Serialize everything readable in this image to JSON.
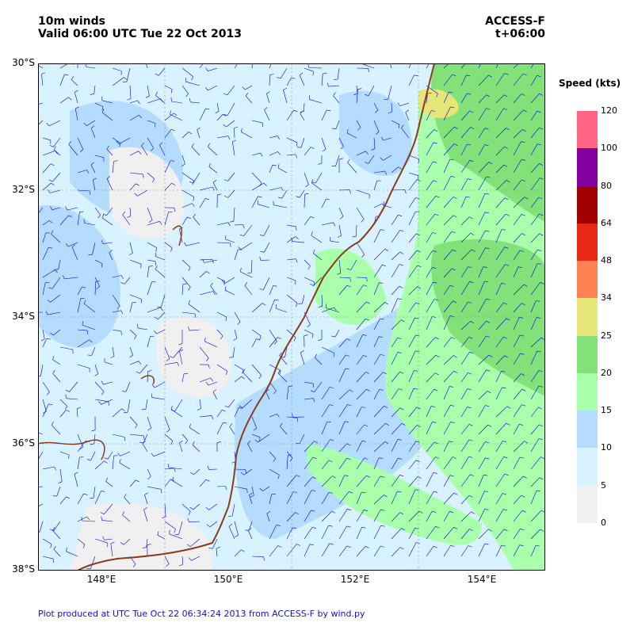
{
  "title": {
    "left_line1": "10m winds",
    "left_line2": "Valid 06:00 UTC Tue 22 Oct 2013",
    "right_line1": "ACCESS-F",
    "right_line2": "t+06:00"
  },
  "axes": {
    "lat_labels": [
      "30°S",
      "32°S",
      "34°S",
      "36°S",
      "38°S"
    ],
    "lon_labels": [
      "148°E",
      "150°E",
      "152°E",
      "154°E"
    ]
  },
  "legend": {
    "title": "Speed (kts)",
    "bins": [
      {
        "label": "0",
        "color": "#f0f0f0"
      },
      {
        "label": "5",
        "color": "#d8f2ff"
      },
      {
        "label": "10",
        "color": "#b4dcff"
      },
      {
        "label": "15",
        "color": "#aaffaa"
      },
      {
        "label": "20",
        "color": "#82e178"
      },
      {
        "label": "25",
        "color": "#e6e678"
      },
      {
        "label": "34",
        "color": "#ff8250"
      },
      {
        "label": "48",
        "color": "#e62814"
      },
      {
        "label": "64",
        "color": "#a00000"
      },
      {
        "label": "80",
        "color": "#8200a0"
      },
      {
        "label": "100",
        "color": "#ff6482"
      }
    ],
    "top_label": "120"
  },
  "map": {
    "extent": {
      "lon_min": 147,
      "lon_max": 155,
      "lat_min": -38,
      "lat_max": -30
    },
    "coast_color": "#8b3a1a",
    "barb_color": "#0000dd"
  },
  "footer": "Plot produced at UTC Tue Oct 22 06:34:24 2013 from ACCESS-F by wind.py"
}
